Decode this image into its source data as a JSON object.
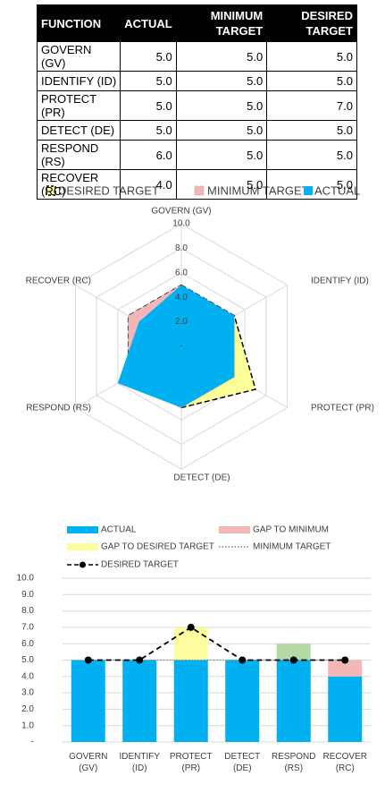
{
  "table": {
    "header": [
      "FUNCTION",
      "ACTUAL",
      "MINIMUM TARGET",
      "DESIRED TARGET"
    ],
    "rows": [
      [
        "GOVERN (GV)",
        "5.0",
        "5.0",
        "5.0"
      ],
      [
        "IDENTIFY (ID)",
        "5.0",
        "5.0",
        "5.0"
      ],
      [
        "PROTECT (PR)",
        "5.0",
        "5.0",
        "7.0"
      ],
      [
        "DETECT (DE)",
        "5.0",
        "5.0",
        "5.0"
      ],
      [
        "RESPOND (RS)",
        "6.0",
        "5.0",
        "5.0"
      ],
      [
        "RECOVER (RC)",
        "4.0",
        "5.0",
        "5.0"
      ]
    ]
  },
  "chart_data": [
    {
      "type": "radar",
      "categories": [
        "GOVERN (GV)",
        "IDENTIFY (ID)",
        "PROTECT (PR)",
        "DETECT (DE)",
        "RESPOND (RS)",
        "RECOVER (RC)"
      ],
      "series": [
        {
          "name": "DESIRED TARGET",
          "color": "#ffff99",
          "values": [
            5,
            5,
            7,
            5,
            5,
            5
          ]
        },
        {
          "name": "MINIMUM TARGET",
          "color": "#f4b6b6",
          "values": [
            5,
            5,
            5,
            5,
            5,
            5
          ]
        },
        {
          "name": "ACTUAL",
          "color": "#00b0f0",
          "values": [
            5,
            5,
            5,
            5,
            6,
            4
          ]
        }
      ],
      "ylim": [
        0,
        10
      ],
      "yticks": [
        {
          "value": 0,
          "label": "-"
        },
        {
          "value": 2,
          "label": "2.0"
        },
        {
          "value": 4,
          "label": "4.0"
        },
        {
          "value": 6,
          "label": "6.0"
        },
        {
          "value": 8,
          "label": "8.0"
        },
        {
          "value": 10,
          "label": "10.0"
        }
      ]
    },
    {
      "type": "bar",
      "categories": [
        "GOVERN (GV)",
        "IDENTIFY (ID)",
        "PROTECT (PR)",
        "DETECT (DE)",
        "RESPOND (RS)",
        "RECOVER (RC)"
      ],
      "series": [
        {
          "name": "ACTUAL",
          "color": "#00b0f0",
          "style": "bar",
          "values": [
            5,
            5,
            5,
            5,
            5,
            4
          ]
        },
        {
          "name": "GAP TO MINIMUM",
          "color": "#f4b6b6",
          "style": "bar",
          "values": [
            0,
            0,
            0,
            0,
            0,
            1
          ]
        },
        {
          "name": "GAP TO DESIRED TARGET",
          "color": "#fdfda0",
          "style": "bar",
          "values": [
            0,
            0,
            2,
            0,
            0,
            0
          ]
        },
        {
          "name": "MINIMUM TARGET",
          "color": "#7f7f7f",
          "style": "dotted-line",
          "values": [
            5,
            5,
            5,
            5,
            5,
            5
          ]
        },
        {
          "name": "DESIRED TARGET",
          "color": "#000000",
          "style": "dashed-line-markers",
          "values": [
            5,
            5,
            7,
            5,
            5,
            5
          ]
        },
        {
          "color": "#b5d9a5",
          "style": "bar",
          "values": [
            0,
            0,
            0,
            0,
            1,
            0
          ]
        }
      ],
      "ylim": [
        0,
        10
      ],
      "yticks": [
        {
          "value": 0,
          "label": "-"
        },
        {
          "value": 1,
          "label": "1.0"
        },
        {
          "value": 2,
          "label": "2.0"
        },
        {
          "value": 3,
          "label": "3.0"
        },
        {
          "value": 4,
          "label": "4.0"
        },
        {
          "value": 5,
          "label": "5.0"
        },
        {
          "value": 6,
          "label": "6.0"
        },
        {
          "value": 7,
          "label": "7.0"
        },
        {
          "value": 8,
          "label": "8.0"
        },
        {
          "value": 9,
          "label": "9.0"
        },
        {
          "value": 10,
          "label": "10.0"
        }
      ],
      "grid": true
    }
  ]
}
